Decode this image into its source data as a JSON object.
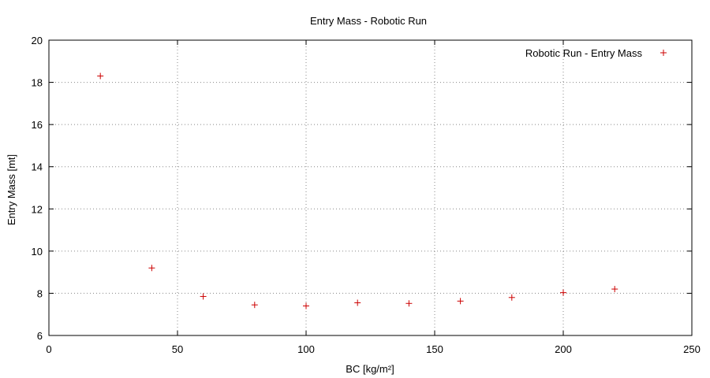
{
  "chart_data": {
    "type": "scatter",
    "title": "Entry Mass - Robotic Run",
    "xlabel": "BC [kg/m²]",
    "ylabel": "Entry Mass [mt]",
    "xlim": [
      0,
      250
    ],
    "ylim": [
      6,
      20
    ],
    "x_ticks": [
      0,
      50,
      100,
      150,
      200,
      250
    ],
    "y_ticks": [
      6,
      8,
      10,
      12,
      14,
      16,
      18,
      20
    ],
    "grid": true,
    "legend_position": "top-right",
    "series": [
      {
        "name": "Robotic Run - Entry Mass",
        "color": "#cc0000",
        "marker": "plus",
        "x": [
          20,
          40,
          60,
          80,
          100,
          120,
          140,
          160,
          180,
          200,
          220
        ],
        "y": [
          18.3,
          9.2,
          7.85,
          7.45,
          7.4,
          7.55,
          7.52,
          7.63,
          7.8,
          8.03,
          8.2
        ]
      }
    ]
  }
}
